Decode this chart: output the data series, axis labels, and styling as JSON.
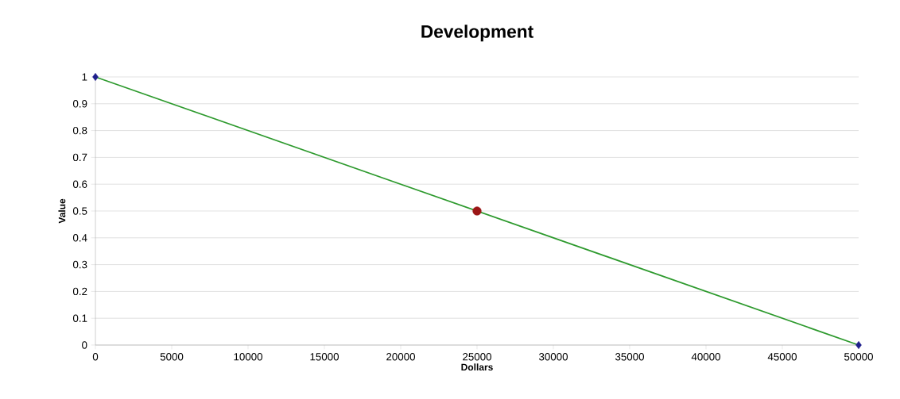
{
  "chart_data": {
    "type": "line",
    "title": "Development",
    "xlabel": "Dollars",
    "ylabel": "Value",
    "series": [
      {
        "type": "scatter",
        "color": "#1f1f8c",
        "marker": "diamond",
        "x": [
          0,
          50000
        ],
        "values": [
          1,
          0
        ]
      },
      {
        "color": "#2e9a2e",
        "marker": "none",
        "x": [
          0,
          50000
        ],
        "values": [
          1,
          0
        ]
      },
      {
        "type": "scatter",
        "color": "#9b1616",
        "marker": "circle",
        "x": [
          25000
        ],
        "values": [
          0.5
        ]
      }
    ],
    "xlim": [
      0,
      50000
    ],
    "ylim": [
      0,
      1
    ],
    "xticks": [
      0,
      5000,
      10000,
      15000,
      20000,
      25000,
      30000,
      35000,
      40000,
      45000,
      50000
    ],
    "yticks": [
      0,
      0.1,
      0.2,
      0.3,
      0.4,
      0.5,
      0.6,
      0.7,
      0.8,
      0.9,
      1
    ],
    "grid": "y"
  }
}
